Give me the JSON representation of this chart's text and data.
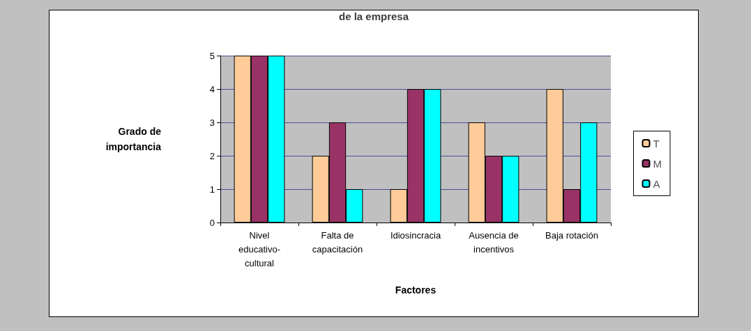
{
  "chart_data": {
    "type": "bar",
    "title": "de la empresa",
    "xlabel": "Factores",
    "ylabel": "Grado de\nimportancia",
    "categories": [
      "Nivel\neducativo-\ncultural",
      "Falta de\ncapacitación",
      "Idiosincracia",
      "Ausencia de\nincentivos",
      "Baja rotación"
    ],
    "series": [
      {
        "name": "T",
        "color": "#ffcc99",
        "values": [
          5,
          2,
          1,
          3,
          4
        ]
      },
      {
        "name": "M",
        "color": "#993366",
        "values": [
          5,
          3,
          4,
          2,
          1
        ]
      },
      {
        "name": "A",
        "color": "#00ffff",
        "values": [
          5,
          1,
          4,
          2,
          3
        ]
      }
    ],
    "ylim": [
      0,
      5
    ],
    "yticks": [
      0,
      1,
      2,
      3,
      4,
      5
    ],
    "grid": "y",
    "legend": "right"
  }
}
